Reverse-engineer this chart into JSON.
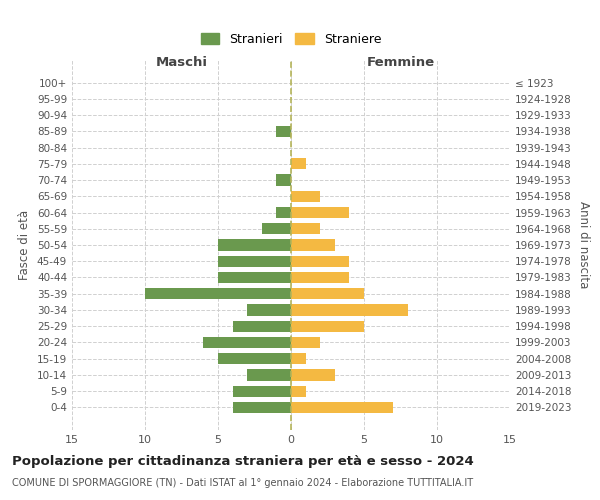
{
  "age_groups": [
    "100+",
    "95-99",
    "90-94",
    "85-89",
    "80-84",
    "75-79",
    "70-74",
    "65-69",
    "60-64",
    "55-59",
    "50-54",
    "45-49",
    "40-44",
    "35-39",
    "30-34",
    "25-29",
    "20-24",
    "15-19",
    "10-14",
    "5-9",
    "0-4"
  ],
  "birth_years": [
    "≤ 1923",
    "1924-1928",
    "1929-1933",
    "1934-1938",
    "1939-1943",
    "1944-1948",
    "1949-1953",
    "1954-1958",
    "1959-1963",
    "1964-1968",
    "1969-1973",
    "1974-1978",
    "1979-1983",
    "1984-1988",
    "1989-1993",
    "1994-1998",
    "1999-2003",
    "2004-2008",
    "2009-2013",
    "2014-2018",
    "2019-2023"
  ],
  "males": [
    0,
    0,
    0,
    1,
    0,
    0,
    1,
    0,
    1,
    2,
    5,
    5,
    5,
    10,
    3,
    4,
    6,
    5,
    3,
    4,
    4
  ],
  "females": [
    0,
    0,
    0,
    0,
    0,
    1,
    0,
    2,
    4,
    2,
    3,
    4,
    4,
    5,
    8,
    5,
    2,
    1,
    3,
    1,
    7
  ],
  "male_color": "#6a994e",
  "female_color": "#f4b942",
  "center_line_color": "#b5b55a",
  "grid_color": "#d0d0d0",
  "background_color": "#ffffff",
  "title": "Popolazione per cittadinanza straniera per età e sesso - 2024",
  "subtitle": "COMUNE DI SPORMAGGIORE (TN) - Dati ISTAT al 1° gennaio 2024 - Elaborazione TUTTITALIA.IT",
  "ylabel_left": "Fasce di età",
  "ylabel_right": "Anni di nascita",
  "xlabel_left": "Maschi",
  "xlabel_top_right": "Femmine",
  "legend_male": "Stranieri",
  "legend_female": "Straniere",
  "xlim": 15,
  "bar_height": 0.7
}
